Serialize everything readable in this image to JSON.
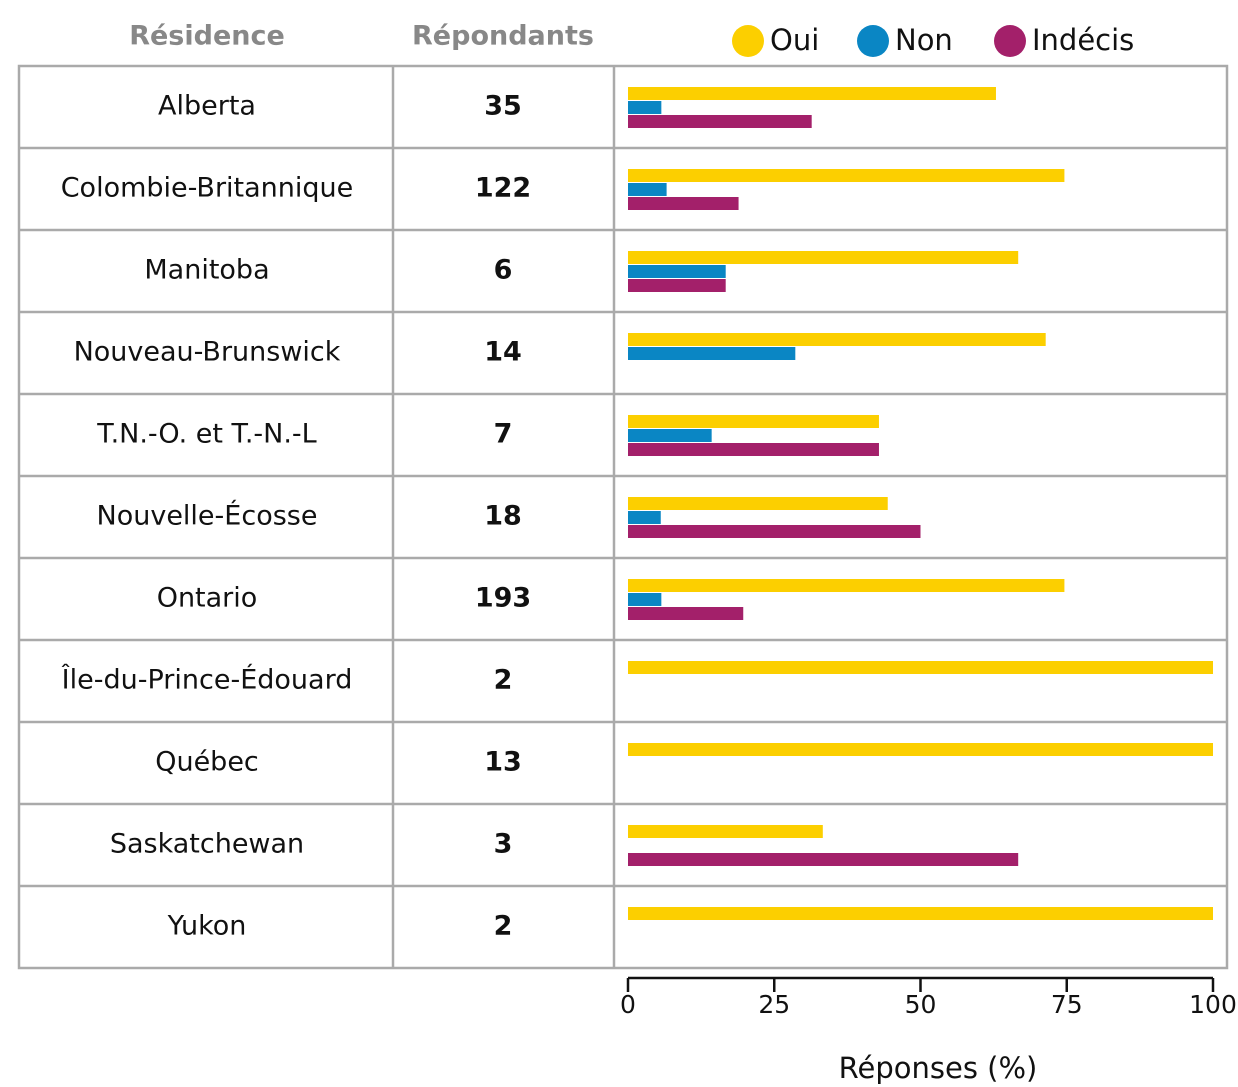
{
  "chart_data": {
    "type": "bar",
    "orientation": "horizontal",
    "column_headers": [
      "Résidence",
      "Répondants"
    ],
    "categories": [
      "Alberta",
      "Colombie-Britannique",
      "Manitoba",
      "Nouveau-Brunswick",
      "T.N.-O. et T.-N.-L",
      "Nouvelle-Écosse",
      "Ontario",
      "Île-du-Prince-Édouard",
      "Québec",
      "Saskatchewan",
      "Yukon"
    ],
    "respondents": [
      35,
      122,
      6,
      14,
      7,
      18,
      193,
      2,
      13,
      3,
      2
    ],
    "series": [
      {
        "name": "Oui",
        "color": "#fccf00",
        "values": [
          62.9,
          74.6,
          66.7,
          71.4,
          42.9,
          44.4,
          74.6,
          100,
          100,
          33.3,
          100
        ]
      },
      {
        "name": "Non",
        "color": "#0a86c4",
        "values": [
          5.7,
          6.6,
          16.7,
          28.6,
          14.3,
          5.6,
          5.7,
          0,
          0,
          0,
          0
        ]
      },
      {
        "name": "Indécis",
        "color": "#a3206a",
        "values": [
          31.4,
          18.9,
          16.7,
          0,
          42.9,
          50,
          19.7,
          0,
          0,
          66.7,
          0
        ]
      }
    ],
    "xlim": [
      0,
      100
    ],
    "xticks": [
      0,
      25,
      50,
      75,
      100
    ],
    "xlabel": "Réponses (%)"
  }
}
